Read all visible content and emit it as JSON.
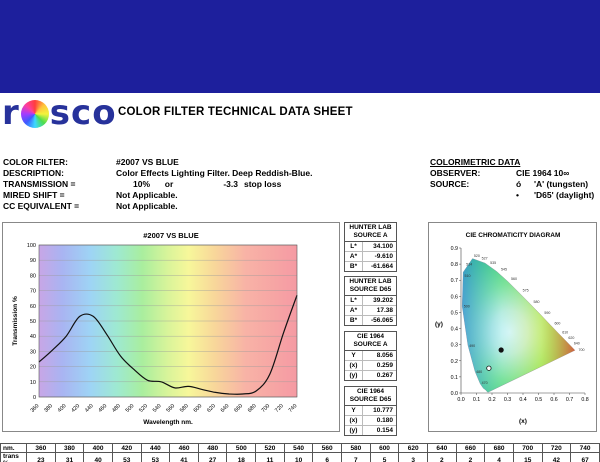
{
  "logo": {
    "letters": [
      "r",
      "o",
      "s",
      "c",
      "o"
    ]
  },
  "sheet_title": "COLOR FILTER TECHNICAL DATA SHEET",
  "info": {
    "color_filter": {
      "label": "COLOR FILTER:",
      "value": "#2007 VS BLUE"
    },
    "description": {
      "label": "DESCRIPTION:",
      "value": "Color Effects Lighting Filter. Deep Reddish-Blue."
    },
    "transmission": {
      "label": "TRANSMISSION =",
      "percent": "10%",
      "or": "or",
      "stops": "-3.3",
      "unit": "stop loss"
    },
    "mired_shift": {
      "label": "MIRED SHIFT =",
      "value": "Not Applicable."
    },
    "cc_equivalent": {
      "label": "CC EQUIVALENT =",
      "value": "Not Applicable."
    }
  },
  "colorimetric": {
    "heading": "COLORIMETRIC DATA",
    "observer": {
      "label": "OBSERVER:",
      "value": "CIE 1964 10∞"
    },
    "source": {
      "label": "SOURCE:",
      "mark1": "ó",
      "value1": "'A' (tungsten)",
      "mark2": "•",
      "value2": "'D65' (daylight)"
    }
  },
  "boxes": {
    "hunter_a": {
      "title1": "HUNTER LAB",
      "title2": "SOURCE A",
      "rows": [
        {
          "k": "L*",
          "v": "34.100"
        },
        {
          "k": "A*",
          "v": "-9.610"
        },
        {
          "k": "B*",
          "v": "-61.664"
        }
      ]
    },
    "hunter_d65": {
      "title1": "HUNTER LAB",
      "title2": "SOURCE D65",
      "rows": [
        {
          "k": "L*",
          "v": "39.202"
        },
        {
          "k": "A*",
          "v": "17.38"
        },
        {
          "k": "B*",
          "v": "-56.065"
        }
      ]
    },
    "cie_a": {
      "title1": "CIE 1964",
      "title2": "SOURCE A",
      "rows": [
        {
          "k": "Y",
          "v": "8.056"
        },
        {
          "k": "(x)",
          "v": "0.259"
        },
        {
          "k": "(y)",
          "v": "0.267"
        }
      ]
    },
    "cie_d65": {
      "title1": "CIE 1964",
      "title2": "SOURCE D65",
      "rows": [
        {
          "k": "Y",
          "v": "10.777"
        },
        {
          "k": "(x)",
          "v": "0.180"
        },
        {
          "k": "(y)",
          "v": "0.154"
        }
      ]
    }
  },
  "chart_data": [
    {
      "type": "line",
      "title": "#2007 VS BLUE",
      "xlabel": "Wavelength nm.",
      "ylabel": "Transmission %",
      "xlim": [
        360,
        740
      ],
      "ylim": [
        0,
        100
      ],
      "x_ticks": [
        360,
        380,
        400,
        420,
        440,
        460,
        480,
        500,
        520,
        540,
        560,
        580,
        600,
        620,
        640,
        660,
        680,
        700,
        720,
        740
      ],
      "y_ticks": [
        0,
        10,
        20,
        30,
        40,
        50,
        60,
        70,
        80,
        90,
        100
      ],
      "grid": true,
      "x": [
        360,
        380,
        400,
        420,
        440,
        460,
        480,
        500,
        520,
        540,
        560,
        580,
        600,
        620,
        640,
        660,
        680,
        700,
        720,
        740
      ],
      "y": [
        23,
        31,
        40,
        53,
        53,
        41,
        27,
        18,
        11,
        10,
        6,
        7,
        5,
        3,
        2,
        2,
        4,
        15,
        42,
        67
      ]
    },
    {
      "type": "scatter",
      "title": "CIE CHROMATICITY DIAGRAM",
      "xlabel": "(x)",
      "ylabel": "(y)",
      "xlim": [
        0,
        0.8
      ],
      "ylim": [
        0,
        0.9
      ],
      "x_ticks": [
        "0.0",
        "0.1",
        "0.2",
        "0.3",
        "0.4",
        "0.5",
        "0.6",
        "0.7",
        "0.8"
      ],
      "y_ticks": [
        "0.0",
        "0.1",
        "0.2",
        "0.3",
        "0.4",
        "0.5",
        "0.6",
        "0.7",
        "0.8",
        "0.9"
      ],
      "locus_labels": [
        "470",
        "480",
        "490",
        "500",
        "510",
        "514",
        "520",
        "527",
        "535",
        "545",
        "560",
        "575",
        "580",
        "590",
        "600",
        "610",
        "620",
        "640",
        "700"
      ],
      "points": [
        {
          "source": "A",
          "x": 0.259,
          "y": 0.267,
          "marker": "filled"
        },
        {
          "source": "D65",
          "x": 0.18,
          "y": 0.154,
          "marker": "hollow"
        }
      ]
    }
  ],
  "transmission_table": {
    "row1_label": "nm.",
    "row2_label": "trans %",
    "nm": [
      "360",
      "380",
      "400",
      "420",
      "440",
      "460",
      "480",
      "500",
      "520",
      "540",
      "560",
      "580",
      "600",
      "620",
      "640",
      "660",
      "680",
      "700",
      "720",
      "740"
    ],
    "trans": [
      "23",
      "31",
      "40",
      "53",
      "53",
      "41",
      "27",
      "18",
      "11",
      "10",
      "6",
      "7",
      "5",
      "3",
      "2",
      "2",
      "4",
      "15",
      "42",
      "67"
    ]
  }
}
